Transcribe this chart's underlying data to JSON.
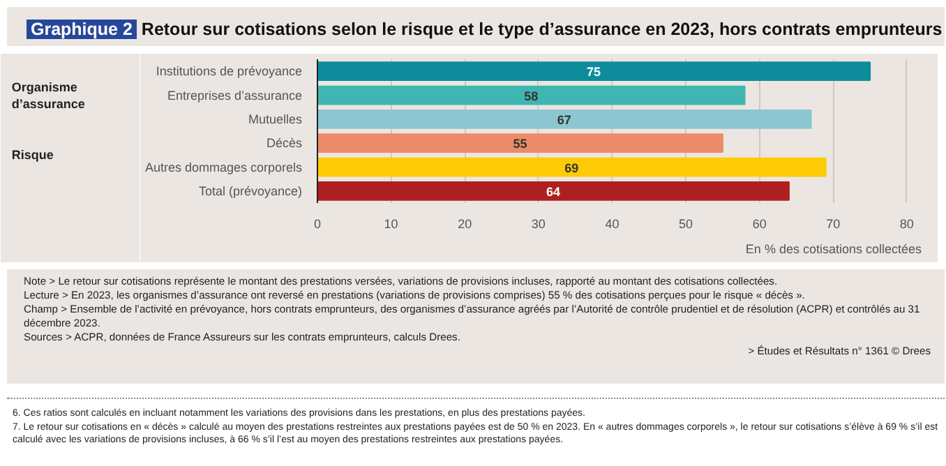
{
  "chart_data": {
    "type": "bar",
    "orientation": "horizontal",
    "title": "Graphique 2",
    "subtitle": "Retour sur cotisations selon le risque et le type d’assurance en 2023, hors contrats emprunteurs",
    "categories": [
      "Institutions de prévoyance",
      "Entreprises d’assurance",
      "Mutuelles",
      "Décès",
      "Autres dommages corporels",
      "Total (prévoyance)"
    ],
    "values": [
      75,
      58,
      67,
      55,
      69,
      64
    ],
    "colors": [
      "#0e8c9b",
      "#3fb6b1",
      "#8cc6d1",
      "#ec8b67",
      "#fdcb06",
      "#b01f1f"
    ],
    "data_labels": true,
    "xlim": [
      0,
      82
    ],
    "xticks": [
      0,
      10,
      20,
      30,
      40,
      50,
      60,
      70,
      80
    ],
    "grid": "x",
    "xlabel": "En % des cotisations collectées",
    "annotations": [
      "Organisme d’assurance",
      "Risque",
      "Note > Le retour sur cotisations représente le montant des prestations versées, variations de provisions incluses, rapporté au montant des cotisations collectées.",
      "Lecture > En 2023, les organismes d’assurance ont reversé en prestations (variations de provisions comprises) 55 % des cotisations perçues pour le risque « décès ».",
      "Champ > Ensemble de l’activité en prévoyance, hors contrats emprunteurs, des organismes d’assurance agréés par l’Autorité de contrôle prudentiel et de résolution (ACPR) et contrôlés au 31 décembre 2023.",
      "Sources > ACPR, données de France Assureurs sur les contrats emprunteurs, calculs Drees.",
      "> Études et Résultats n° 1361 © Drees",
      "6. Ces ratios sont calculés en incluant notamment les variations des provisions dans les prestations, en plus des prestations payées.",
      "7. Le retour sur cotisations en « décès » calculé au moyen des prestations restreintes aux prestations payées est de 50 % en 2023. En « autres dommages corporels », le retour sur cotisations s’élève à 69 % s’il est calculé avec les variations de provisions incluses, à 66 % s’il l’est au moyen des prestations restreintes aux prestations payées."
    ]
  }
}
